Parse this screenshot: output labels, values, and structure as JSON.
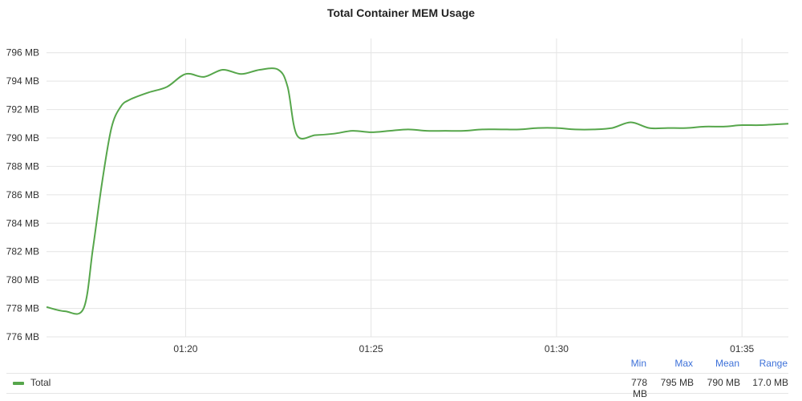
{
  "chart_data": {
    "type": "line",
    "title": "Total Container MEM Usage",
    "ylim": [
      776,
      797
    ],
    "y_unit": "MB",
    "yticks": [
      776,
      778,
      780,
      782,
      784,
      786,
      788,
      790,
      792,
      794,
      796
    ],
    "ytick_labels": [
      "776 MB",
      "778 MB",
      "780 MB",
      "782 MB",
      "784 MB",
      "786 MB",
      "788 MB",
      "790 MB",
      "792 MB",
      "794 MB",
      "796 MB"
    ],
    "xticks": [
      "01:20",
      "01:25",
      "01:30",
      "01:35"
    ],
    "xlim": [
      "01:16:15",
      "01:36:15"
    ],
    "grid": true,
    "series": [
      {
        "name": "Total",
        "color": "#56a64b",
        "x": [
          "01:16:15",
          "01:16:45",
          "01:17:15",
          "01:17:30",
          "01:17:45",
          "01:18:00",
          "01:18:15",
          "01:18:30",
          "01:19:00",
          "01:19:30",
          "01:20:00",
          "01:20:30",
          "01:21:00",
          "01:21:30",
          "01:22:00",
          "01:22:30",
          "01:22:45",
          "01:23:00",
          "01:23:30",
          "01:24:00",
          "01:24:30",
          "01:25:00",
          "01:25:30",
          "01:26:00",
          "01:26:30",
          "01:27:00",
          "01:27:30",
          "01:28:00",
          "01:28:30",
          "01:29:00",
          "01:29:30",
          "01:30:00",
          "01:30:30",
          "01:31:00",
          "01:31:30",
          "01:32:00",
          "01:32:30",
          "01:33:00",
          "01:33:30",
          "01:34:00",
          "01:34:30",
          "01:35:00",
          "01:35:30",
          "01:36:15"
        ],
        "values": [
          778.1,
          777.8,
          778.0,
          782.2,
          786.9,
          790.7,
          792.2,
          792.7,
          793.2,
          793.6,
          794.5,
          794.3,
          794.8,
          794.5,
          794.8,
          794.8,
          793.6,
          790.2,
          790.2,
          790.3,
          790.5,
          790.4,
          790.5,
          790.6,
          790.5,
          790.5,
          790.5,
          790.6,
          790.6,
          790.6,
          790.7,
          790.7,
          790.6,
          790.6,
          790.7,
          791.1,
          790.7,
          790.7,
          790.7,
          790.8,
          790.8,
          790.9,
          790.9,
          791.0
        ]
      }
    ]
  },
  "legend": {
    "headers": {
      "min": "Min",
      "max": "Max",
      "mean": "Mean",
      "range": "Range"
    },
    "rows": [
      {
        "name": "Total",
        "min": "778 MB",
        "max": "795 MB",
        "mean": "790 MB",
        "range": "17.0 MB"
      }
    ]
  }
}
